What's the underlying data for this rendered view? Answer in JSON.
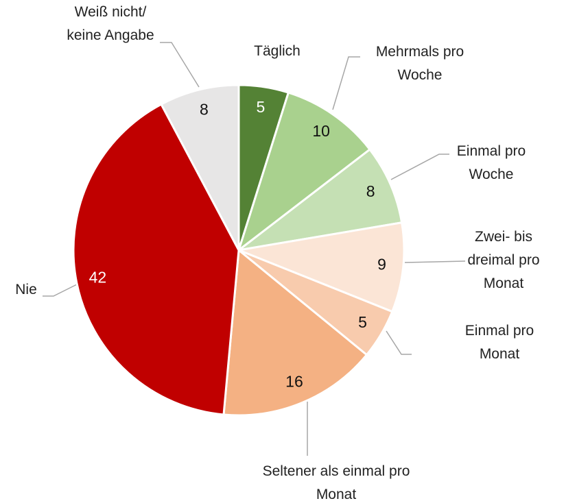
{
  "chart_data": {
    "type": "pie",
    "categories": [
      "Täglich",
      "Mehrmals pro\nWoche",
      "Einmal pro\nWoche",
      "Zwei- bis\ndreimal pro\nMonat",
      "Einmal pro Monat",
      "Seltener als einmal pro\nMonat",
      "Nie",
      "Weiß nicht/\nkeine Angabe"
    ],
    "values": [
      5,
      10,
      8,
      9,
      5,
      16,
      42,
      8
    ],
    "colors": [
      "#548235",
      "#a9d18e",
      "#c5e0b4",
      "#fbe5d6",
      "#f8cbad",
      "#f4b183",
      "#c00000",
      "#e7e6e6"
    ]
  }
}
